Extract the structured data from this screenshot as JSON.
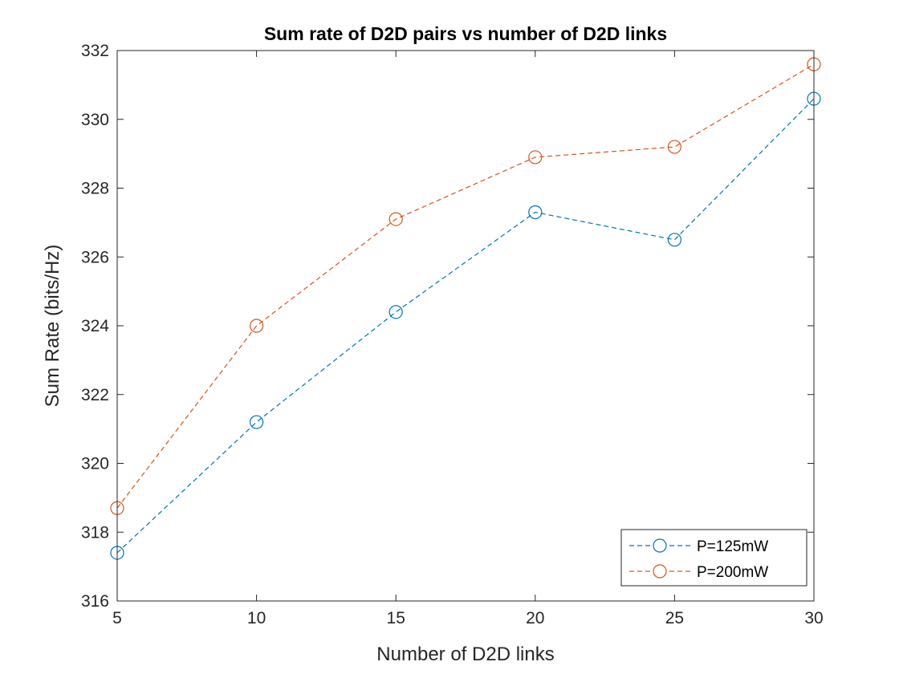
{
  "chart_data": {
    "type": "line",
    "title": "Sum rate of D2D pairs vs number of D2D links",
    "xlabel": "Number of D2D links",
    "ylabel": "Sum Rate (bits/Hz)",
    "x": [
      5,
      10,
      15,
      20,
      25,
      30
    ],
    "xlim": [
      5,
      30
    ],
    "ylim": [
      316,
      332
    ],
    "xticks": [
      5,
      10,
      15,
      20,
      25,
      30
    ],
    "yticks": [
      316,
      318,
      320,
      322,
      324,
      326,
      328,
      330,
      332
    ],
    "grid": false,
    "legend_position": "bottom-right",
    "series": [
      {
        "name": "P=125mW",
        "color": "#0072BD",
        "line_style": "dashed",
        "marker": "circle",
        "values": [
          317.4,
          321.2,
          324.4,
          327.3,
          326.5,
          330.6
        ]
      },
      {
        "name": "P=200mW",
        "color": "#D95319",
        "line_style": "dashed",
        "marker": "circle",
        "values": [
          318.7,
          324.0,
          327.1,
          328.9,
          329.2,
          331.6
        ]
      }
    ]
  }
}
